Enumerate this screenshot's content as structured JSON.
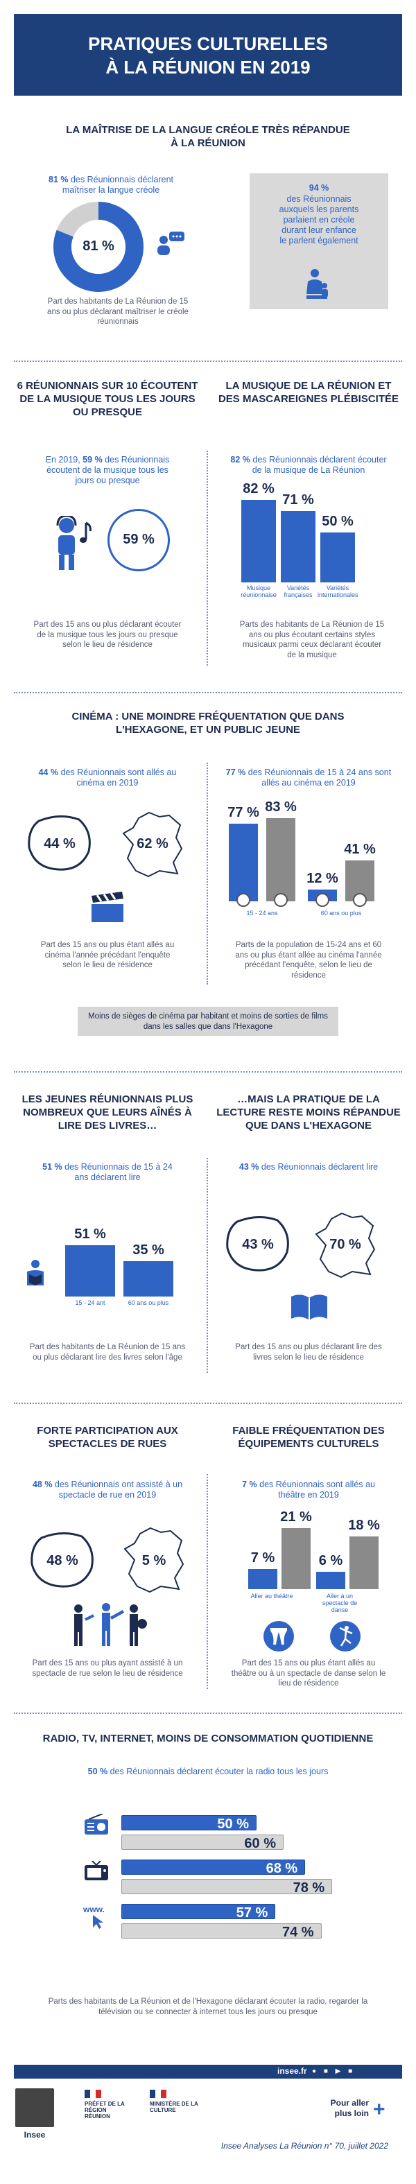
{
  "title": {
    "line1": "PRATIQUES CULTURELLES",
    "line2": "À LA RÉUNION EN 2019"
  },
  "s1": {
    "heading": "LA MAÎTRISE DE LA LANGUE CRÉOLE TRÈS RÉPANDUE À LA RÉUNION",
    "text_pct": "81 %",
    "text": " des Réunionnais déclarent maîtriser la langue créole",
    "donut_label": "81 %",
    "donut_value": 81,
    "caption": "Part des habitants de La Réunion de 15 ans ou plus déclarant maîtriser le créole réunionnais",
    "box_pct": "94 %",
    "box_text": "des Réunionnais auxquels les parents parlaient en créole durant leur enfance le parlent également"
  },
  "s2": {
    "left_heading": "6 RÉUNIONNAIS SUR 10 ÉCOUTENT DE LA MUSIQUE TOUS LES JOURS OU PRESQUE",
    "left_text_pre": "En 2019, ",
    "left_pct": "59 %",
    "left_text": " des Réunionnais écoutent de la musique tous les jours ou presque",
    "left_circle": "59 %",
    "left_caption": "Part des 15 ans ou plus déclarant écouter de la musique tous les jours ou presque selon le lieu de résidence",
    "right_heading": "LA MUSIQUE DE LA RÉUNION ET DES MASCAREIGNES PLÉBISCITÉE",
    "right_pct": "82 %",
    "right_text": " des Réunionnais déclarent écouter de la musique de La Réunion",
    "right_caption": "Parts des habitants de La Réunion de 15 ans ou plus écoutant certains styles musicaux  parmi ceux déclarant écouter de la musique"
  },
  "s3": {
    "heading": "CINÉMA : UNE MOINDRE FRÉQUENTATION QUE DANS L'HEXAGONE, ET UN PUBLIC JEUNE",
    "left_pct": "44 %",
    "left_text": " des Réunionnais sont allés au cinéma en 2019",
    "map_reunion": "44 %",
    "map_france": "62 %",
    "left_caption": "Part des 15 ans ou plus étant allés au cinéma l'année précédant l'enquête selon le lieu de résidence",
    "right_pct": "77 %",
    "right_text": " des Réunionnais de 15 à 24 ans sont allés au cinéma en 2019",
    "right_caption": "Parts de la population de 15-24 ans et 60 ans ou plus étant allée au cinéma l'année précédant l'enquête, selon le lieu de résidence",
    "note": "Moins de sièges de cinéma par habitant et moins de sorties de films dans les salles que dans l'Hexagone"
  },
  "s4": {
    "left_heading": "LES JEUNES RÉUNIONNAIS PLUS NOMBREUX QUE LEURS AÎNÉS À LIRE DES LIVRES…",
    "left_pct": "51 %",
    "left_text": " des Réunionnais de 15 à 24 ans déclarent lire",
    "left_caption": "Part des habitants de La Réunion de 15 ans ou plus déclarant lire des livres selon l'âge",
    "right_heading": "…MAIS LA PRATIQUE DE LA LECTURE RESTE MOINS RÉPANDUE QUE DANS L'HEXAGONE",
    "right_pct": "43 %",
    "right_text": " des Réunionnais déclarent lire",
    "map_reunion": "43 %",
    "map_france": "70 %",
    "right_caption": "Part des 15 ans ou plus déclarant lire des livres selon le lieu de résidence"
  },
  "s5": {
    "left_heading": "FORTE PARTICIPATION AUX SPECTACLES DE RUES",
    "left_pct": "48 %",
    "left_text": " des Réunionnais ont assisté à un spectacle de rue en 2019",
    "map_reunion": "48 %",
    "map_france": "5 %",
    "left_caption": "Part des 15 ans ou plus ayant assisté à un spectacle de rue selon le lieu de résidence",
    "right_heading": "FAIBLE FRÉQUENTATION DES ÉQUIPEMENTS CULTURELS",
    "right_pct": "7 %",
    "right_text": " des Réunionnais sont allés au théâtre en 2019",
    "right_caption": "Part des 15 ans ou plus étant allés au théâtre ou à un spectacle de danse selon le lieu de résidence"
  },
  "s6": {
    "heading": "RADIO, TV, INTERNET, MOINS DE CONSOMMATION QUOTIDIENNE",
    "pct": "50 %",
    "text": " des Réunionnais déclarent écouter la radio tous les jours",
    "caption": "Parts des habitants de La Réunion et de l'Hexagone déclarant écouter la radio, regarder la télévision ou se connecter à internet tous les jours ou presque"
  },
  "footer": {
    "site": "insee.fr",
    "insee": "Insee",
    "prefet": "PRÉFET DE LA RÉGION RÉUNION",
    "ministere": "MINISTÈRE DE LA CULTURE",
    "more": "Pour aller plus loin",
    "ref": "Insee Analyses La Réunion n° 70, juillet 2022"
  },
  "colors": {
    "blue": "#2f63c4",
    "navy": "#1d3f7a",
    "grey": "#8a8a8a"
  },
  "chart_data": [
    {
      "type": "bar",
      "categories": [
        "Musique réunionnaise",
        "Variétés françaises",
        "Variétés internationales"
      ],
      "values": [
        82,
        71,
        50
      ]
    },
    {
      "type": "bar",
      "categories": [
        "15 - 24 ans",
        "60 ans ou plus"
      ],
      "series": [
        {
          "values": [
            77,
            12
          ]
        },
        {
          "values": [
            83,
            41
          ]
        }
      ]
    },
    {
      "type": "bar",
      "categories": [
        "15 - 24 ant",
        "60 ans ou plus"
      ],
      "values": [
        51,
        35
      ]
    },
    {
      "type": "bar",
      "categories": [
        "Aller au théâtre",
        "Aller à un spectacle de danse"
      ],
      "series": [
        {
          "values": [
            7,
            6
          ]
        },
        {
          "values": [
            21,
            18
          ]
        }
      ]
    },
    {
      "type": "bar",
      "categories": [
        "radio",
        "télévision",
        "internet"
      ],
      "series": [
        {
          "values": [
            50,
            68,
            57
          ]
        },
        {
          "values": [
            60,
            78,
            74
          ]
        }
      ]
    }
  ]
}
